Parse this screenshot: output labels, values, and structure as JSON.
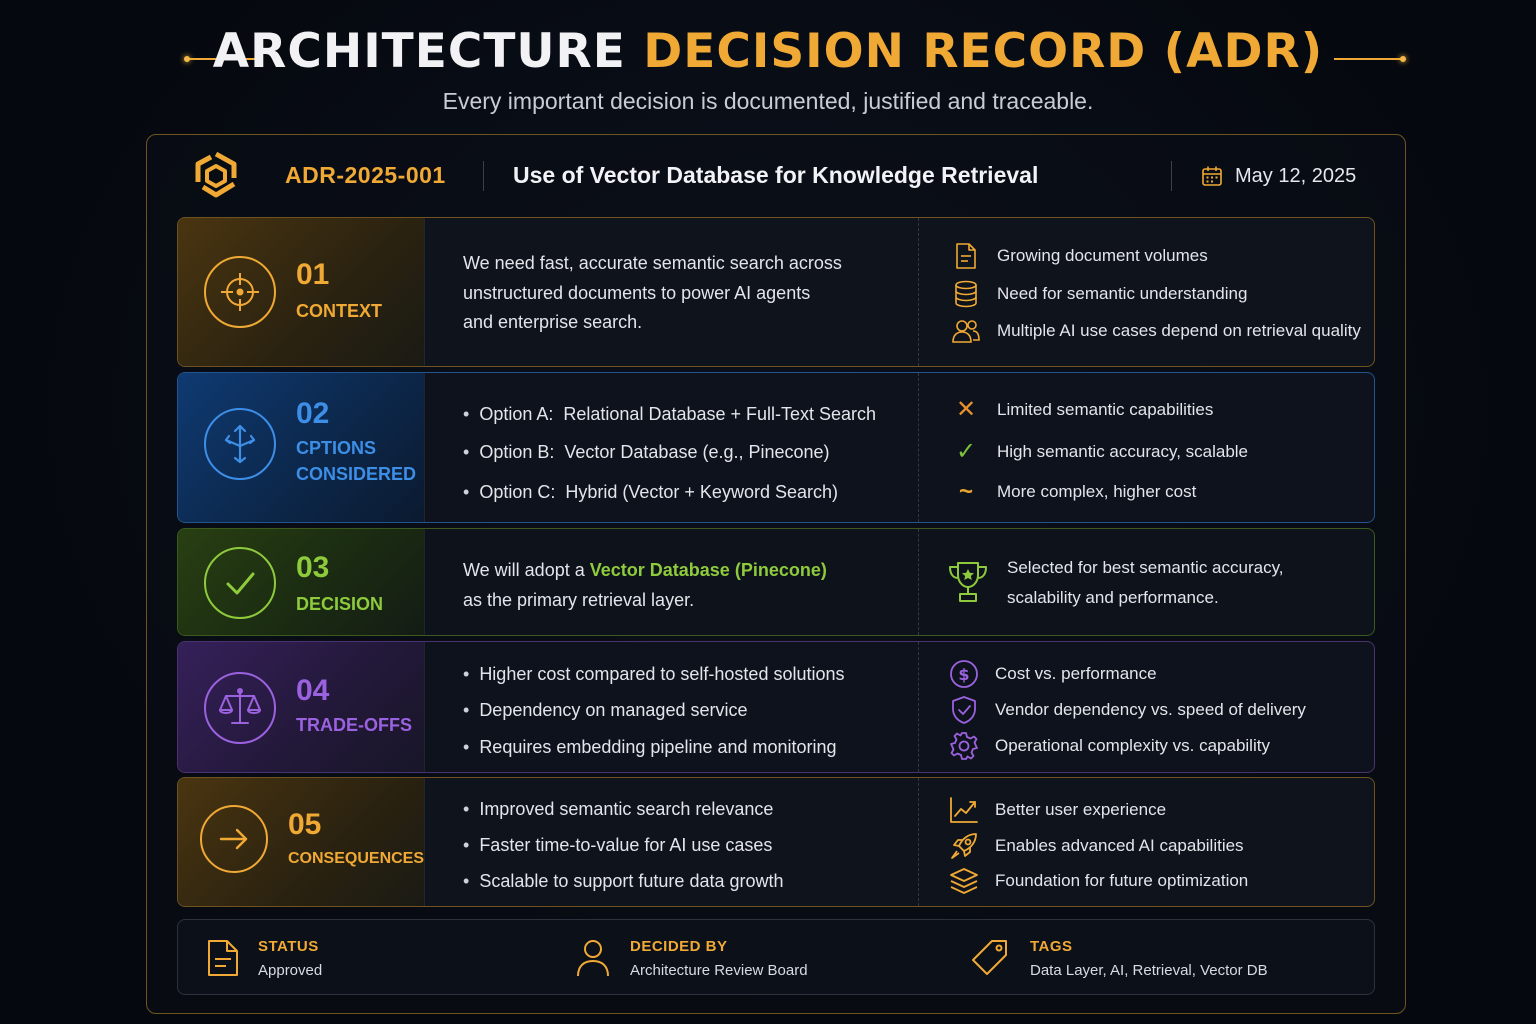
{
  "header": {
    "title_white": "ARCHITECTURE",
    "title_gold": "DECISION RECORD (ADR)",
    "subtitle": "Every important decision is documented, justified and traceable."
  },
  "record": {
    "id": "ADR-2025-001",
    "title": "Use of Vector Database for Knowledge Retrieval",
    "date": "May 12, 2025",
    "icons": {
      "logo": "hexagon-logo-icon",
      "date": "calendar-icon"
    }
  },
  "sections": {
    "context": {
      "num": "01",
      "label": "CONTEXT",
      "accent": "#f0a934",
      "icon": "crosshair-icon",
      "text": [
        "We need fast, accurate semantic search across",
        "unstructured documents to power AI agents",
        "and enterprise search."
      ],
      "drivers": [
        {
          "icon": "document-icon",
          "text": "Growing document volumes"
        },
        {
          "icon": "database-icon",
          "text": "Need for semantic understanding"
        },
        {
          "icon": "users-icon",
          "text": "Multiple AI use cases depend on retrieval quality"
        }
      ]
    },
    "options": {
      "num": "02",
      "label_line1": "CPTIONS",
      "label_line2": "CONSIDERED",
      "accent": "#3d8ee6",
      "icon": "arrows-split-icon",
      "items": [
        {
          "key": "Option A:",
          "value": "Relational Database + Full-Text Search"
        },
        {
          "key": "Option B:",
          "value": "Vector Database (e.g., Pinecone)"
        },
        {
          "key": "Option C:",
          "value": "Hybrid (Vector + Keyword Search)"
        }
      ],
      "evaluations": [
        {
          "icon": "x-icon",
          "mark": "✕",
          "color": "#e8902e",
          "text": "Limited semantic capabilities"
        },
        {
          "icon": "check-icon",
          "mark": "✓",
          "color": "#7cc23a",
          "text": "High semantic accuracy, scalable"
        },
        {
          "icon": "tilde-icon",
          "mark": "~",
          "color": "#e8a330",
          "text": "More complex, higher cost"
        }
      ]
    },
    "decision": {
      "num": "03",
      "label": "DECISION",
      "accent": "#8ecb3c",
      "icon": "check-circle-icon",
      "text_before": "We will adopt a",
      "highlight": "Vector Database (Pinecone)",
      "text_after": "as the primary retrieval layer.",
      "rationale_icon": "trophy-icon",
      "rationale": [
        "Selected for best semantic accuracy,",
        "scalability and performance."
      ]
    },
    "tradeoffs": {
      "num": "04",
      "label": "TRADE-OFFS",
      "accent": "#9b62e0",
      "icon": "balance-scale-icon",
      "items": [
        "Higher cost compared to self-hosted solutions",
        "Dependency on managed service",
        "Requires embedding pipeline and monitoring"
      ],
      "balances": [
        {
          "icon": "dollar-circle-icon",
          "text": "Cost vs. performance"
        },
        {
          "icon": "shield-check-icon",
          "text": "Vendor dependency vs. speed of delivery"
        },
        {
          "icon": "gear-icon",
          "text": "Operational complexity vs. capability"
        }
      ]
    },
    "consequences": {
      "num": "05",
      "label": "CONSEQUENCES",
      "accent": "#f0a934",
      "icon": "arrow-right-circle-icon",
      "items": [
        "Improved semantic search relevance",
        "Faster time-to-value for AI use cases",
        "Scalable to support future data growth"
      ],
      "outcomes": [
        {
          "icon": "trend-chart-icon",
          "text": "Better user experience"
        },
        {
          "icon": "rocket-icon",
          "text": "Enables advanced AI capabilities"
        },
        {
          "icon": "layers-icon",
          "text": "Foundation for future optimization"
        }
      ]
    }
  },
  "footer": {
    "status": {
      "label": "STATUS",
      "value": "Approved",
      "icon": "document-icon"
    },
    "decided_by": {
      "label": "DECIDED BY",
      "value": "Architecture Review Board",
      "icon": "user-icon"
    },
    "tags": {
      "label": "TAGS",
      "value": "Data Layer, AI, Retrieval, Vector DB",
      "icon": "tag-icon"
    }
  }
}
